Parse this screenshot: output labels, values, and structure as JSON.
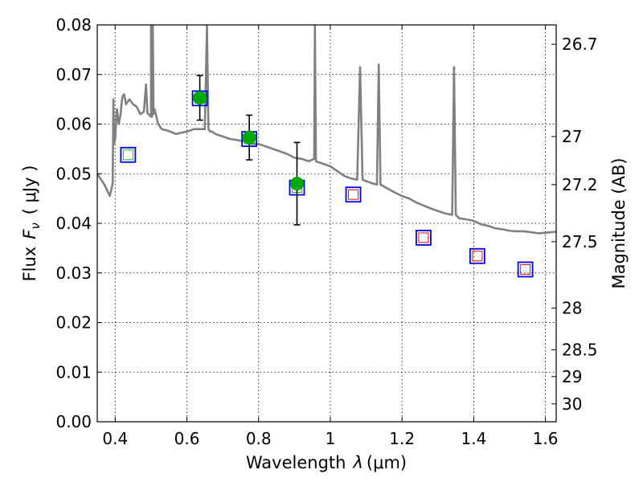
{
  "chart_data": {
    "type": "scatter",
    "title": "",
    "xlabel": "Wavelength  λ (μm)",
    "ylabel": "Flux  F_ν  ( μJy )",
    "ylabel_parts": [
      "Flux",
      "F",
      "ν",
      "( μJy )"
    ],
    "xlabel_parts": [
      "Wavelength",
      "λ",
      "(μm)"
    ],
    "y2label": "Magnitude (AB)",
    "xlim": [
      0.35,
      1.63
    ],
    "ylim": [
      0.0,
      0.08
    ],
    "grid": true,
    "x_ticks": [
      0.4,
      0.6,
      0.8,
      1.0,
      1.2,
      1.4,
      1.6
    ],
    "x_tick_labels": [
      "0.4",
      "0.6",
      "0.8",
      "1",
      "1.2",
      "1.4",
      "1.6"
    ],
    "y_ticks": [
      0.0,
      0.01,
      0.02,
      0.03,
      0.04,
      0.05,
      0.06,
      0.07,
      0.08
    ],
    "y_tick_labels": [
      "0.00",
      "0.01",
      "0.02",
      "0.03",
      "0.04",
      "0.05",
      "0.06",
      "0.07",
      "0.08"
    ],
    "y2_ticks": [
      {
        "label": "26.7",
        "flux": 0.0761
      },
      {
        "label": "27",
        "flux": 0.0575
      },
      {
        "label": "27.2",
        "flux": 0.0478
      },
      {
        "label": "27.5",
        "flux": 0.0363
      },
      {
        "label": "28",
        "flux": 0.0229
      },
      {
        "label": "28.5",
        "flux": 0.0145
      },
      {
        "label": "29",
        "flux": 0.0091
      },
      {
        "label": "30",
        "flux": 0.0036
      }
    ],
    "colors": {
      "spectrum": "#808080",
      "measured": "#00aa00",
      "model_box": "#0000ff",
      "inner_green": "#00cc00",
      "inner_red": "#ff0000"
    },
    "spectrum": {
      "x": [
        0.35,
        0.37,
        0.385,
        0.393,
        0.395,
        0.397,
        0.4,
        0.405,
        0.41,
        0.415,
        0.42,
        0.425,
        0.43,
        0.44,
        0.45,
        0.46,
        0.47,
        0.48,
        0.486,
        0.49,
        0.5,
        0.5,
        0.503,
        0.505,
        0.507,
        0.51,
        0.52,
        0.53,
        0.54,
        0.55,
        0.56,
        0.57,
        0.58,
        0.6,
        0.62,
        0.64,
        0.65,
        0.656,
        0.66,
        0.665,
        0.67,
        0.68,
        0.7,
        0.72,
        0.74,
        0.76,
        0.78,
        0.8,
        0.82,
        0.84,
        0.86,
        0.88,
        0.9,
        0.92,
        0.94,
        0.955,
        0.957,
        0.96,
        0.98,
        1.0,
        1.02,
        1.04,
        1.06,
        1.075,
        1.083,
        1.09,
        1.1,
        1.12,
        1.13,
        1.135,
        1.14,
        1.16,
        1.18,
        1.2,
        1.22,
        1.24,
        1.26,
        1.28,
        1.3,
        1.32,
        1.34,
        1.345,
        1.35,
        1.36,
        1.38,
        1.4,
        1.42,
        1.44,
        1.46,
        1.48,
        1.5,
        1.52,
        1.54,
        1.56,
        1.58,
        1.6,
        1.63
      ],
      "y": [
        0.05,
        0.0478,
        0.0455,
        0.048,
        0.065,
        0.056,
        0.057,
        0.063,
        0.06,
        0.062,
        0.0655,
        0.066,
        0.064,
        0.065,
        0.064,
        0.0635,
        0.062,
        0.0625,
        0.068,
        0.0622,
        0.0615,
        0.08,
        0.0615,
        0.08,
        0.062,
        0.063,
        0.06,
        0.059,
        0.0588,
        0.0586,
        0.0583,
        0.058,
        0.0582,
        0.0585,
        0.059,
        0.059,
        0.059,
        0.08,
        0.059,
        0.0585,
        0.0585,
        0.058,
        0.0575,
        0.057,
        0.0568,
        0.0565,
        0.056,
        0.056,
        0.0555,
        0.055,
        0.0545,
        0.054,
        0.0532,
        0.053,
        0.0525,
        0.053,
        0.08,
        0.0525,
        0.052,
        0.0515,
        0.0505,
        0.0495,
        0.049,
        0.0488,
        0.0715,
        0.0488,
        0.0485,
        0.048,
        0.0478,
        0.072,
        0.0478,
        0.047,
        0.0462,
        0.0455,
        0.045,
        0.0442,
        0.0436,
        0.043,
        0.0425,
        0.042,
        0.0417,
        0.0715,
        0.0417,
        0.041,
        0.0408,
        0.0405,
        0.0398,
        0.0395,
        0.039,
        0.0388,
        0.0385,
        0.0384,
        0.0384,
        0.0382,
        0.038,
        0.0381,
        0.0383
      ]
    },
    "measured": [
      {
        "x": 0.636,
        "y": 0.0653,
        "err": 0.0045
      },
      {
        "x": 0.774,
        "y": 0.0573,
        "err": 0.0045
      },
      {
        "x": 0.907,
        "y": 0.048,
        "err": 0.0083
      }
    ],
    "model_points": [
      {
        "x": 0.436,
        "y": 0.0538,
        "inner": "green"
      },
      {
        "x": 0.636,
        "y": 0.0652,
        "inner": "green"
      },
      {
        "x": 0.774,
        "y": 0.057,
        "inner": "green"
      },
      {
        "x": 0.907,
        "y": 0.0472,
        "inner": "green"
      },
      {
        "x": 1.064,
        "y": 0.0458,
        "inner": "red"
      },
      {
        "x": 1.26,
        "y": 0.0371,
        "inner": "red"
      },
      {
        "x": 1.41,
        "y": 0.0334,
        "inner": "red"
      },
      {
        "x": 1.544,
        "y": 0.0307,
        "inner": "red"
      }
    ]
  }
}
